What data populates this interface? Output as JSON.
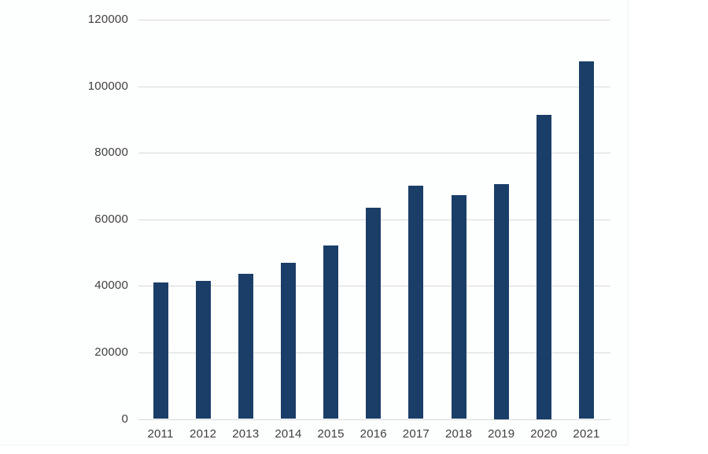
{
  "chart_data": {
    "type": "bar",
    "title": "",
    "xlabel": "",
    "ylabel": "",
    "categories": [
      "2011",
      "2012",
      "2013",
      "2014",
      "2015",
      "2016",
      "2017",
      "2018",
      "2019",
      "2020",
      "2021"
    ],
    "values": [
      41000,
      41500,
      43700,
      46900,
      52100,
      63400,
      70200,
      67300,
      70500,
      91500,
      107500
    ],
    "ylim": [
      0,
      120000
    ],
    "yticks": [
      0,
      20000,
      40000,
      60000,
      80000,
      100000,
      120000
    ],
    "ytick_labels": [
      "0",
      "20000",
      "40000",
      "60000",
      "80000",
      "100000",
      "120000"
    ],
    "grid": true,
    "legend": false,
    "colors": {
      "bar": "#1b3e68",
      "gridline": "#d9d9d9",
      "axis_text": "#404040",
      "background": "#ffffff"
    }
  }
}
